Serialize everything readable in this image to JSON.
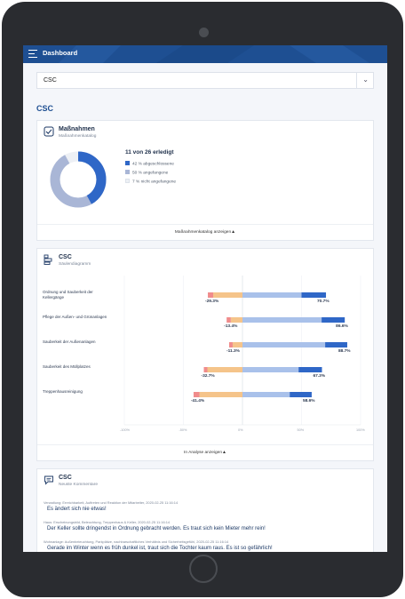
{
  "header": {
    "title": "Dashboard"
  },
  "selector": {
    "value": "CSC"
  },
  "section": {
    "title": "CSC"
  },
  "measures": {
    "title": "Maßnahmen",
    "subtitle": "Maßnahmenkatalog",
    "summary": "11 von 26 erledigt",
    "legend": [
      {
        "label": "42 % abgeschlossene",
        "color": "#2f67c7"
      },
      {
        "label": "50 % angefangene",
        "color": "#a9b6d6"
      },
      {
        "label": "7 % nicht angefangene",
        "color": "#edf0f5"
      }
    ],
    "footer_link": "Maßnahmenkatalog anzeigen",
    "donut": {
      "completed": 42,
      "started": 50,
      "not_started": 7
    }
  },
  "bar_card": {
    "title": "CSC",
    "subtitle": "Säulendiagramm",
    "footer_link": "In Analyse anzeigen"
  },
  "chart_data": {
    "type": "bar",
    "orientation": "horizontal-diverging",
    "categories": [
      "Ordnung und Sauberkeit der Kellergänge",
      "Pflege der Außen- und Grünanlagen",
      "Sauberkeit der Außenanlagen",
      "Sauberkeit des Müllplatzes",
      "Treppenhausreinigung"
    ],
    "negative_totals": [
      -29.3,
      -13.4,
      -11.3,
      -32.7,
      -41.4
    ],
    "positive_totals": [
      70.7,
      86.6,
      88.7,
      67.3,
      58.6
    ],
    "negative_labels": [
      "-29.3%",
      "-13.4%",
      "-11.3%",
      "-32.7%",
      "-41.4%"
    ],
    "positive_labels": [
      "70.7%",
      "86.6%",
      "88.7%",
      "67.3%",
      "58.6%"
    ],
    "series": [
      {
        "name": "",
        "color": "#f08c8c",
        "values": [
          -4.5,
          -3.5,
          -3.0,
          -3.0,
          -5.0
        ]
      },
      {
        "name": "",
        "color": "#f5c48a",
        "values": [
          -24.8,
          -9.9,
          -8.3,
          -29.7,
          -36.4
        ]
      },
      {
        "name": "",
        "color": "#a9c1ea",
        "values": [
          50.0,
          67.0,
          70.0,
          47.5,
          40.0
        ]
      },
      {
        "name": "",
        "color": "#2f67c7",
        "values": [
          20.7,
          19.6,
          18.7,
          19.8,
          18.6
        ]
      }
    ],
    "xlim": [
      -100,
      100
    ],
    "xticks": [
      "-100%",
      "-50%",
      "0%",
      "50%",
      "100%"
    ],
    "xtick_values": [
      -100,
      -50,
      0,
      50,
      100
    ],
    "grid": true
  },
  "comments": {
    "title": "CSC",
    "subtitle": "Neuste Kommentare",
    "items": [
      {
        "category": "Verwaltung: Erreichbarkeit, Auftreten und Reaktion der Mitarbeiter, 2020-02-25 11:16:14",
        "text": "Es ändert sich nie etwas!"
      },
      {
        "category": "Haus: Erscheinungsbild, Beleuchtung, Treppenhaus & Keller, 2020-02-25 11:16:14",
        "text": "Der Keller sollte dringendst in Ordnung gebracht werden. Es traut sich kein Mieter mehr rein!"
      },
      {
        "category": "Wohnanlage: Außenbeleuchtung, Parkplätze, nachbarschaftliches Verhältnis und Sicherheitsgefühl, 2020-02-25 11:16:14",
        "text": "Gerade im Winter wenn es früh dunkel ist, traut sich die Tochter kaum raus. Es ist so gefährlich!"
      }
    ]
  },
  "colors": {
    "brand": "#1e4f92",
    "completed": "#2f67c7",
    "started": "#a9b6d6",
    "not_started": "#edf0f5"
  }
}
